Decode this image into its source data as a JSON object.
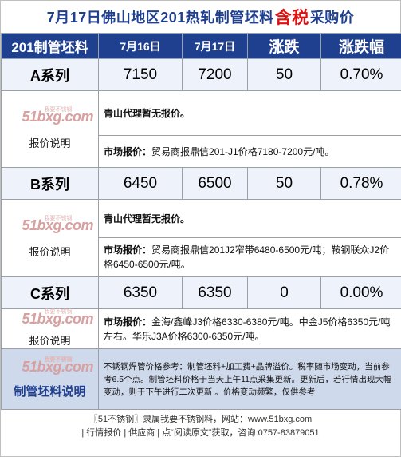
{
  "title": {
    "prefix": "7月17日佛山地区201热轧制管坯料",
    "highlight": "含税",
    "suffix": "采购价"
  },
  "header": {
    "col0": "201制管坯料",
    "col1": "7月16日",
    "col2": "7月17日",
    "col3": "涨跌",
    "col4": "涨跌幅"
  },
  "watermark": {
    "brand": "51bxg.com",
    "small": "我要不锈钢"
  },
  "note_label": "报价说明",
  "rows": [
    {
      "name": "A系列",
      "prev": "7150",
      "curr": "7200",
      "change": "50",
      "pct": "0.70%",
      "note1": "青山代理暂无报价。",
      "note2_label": "市场报价：",
      "note2": "贸易商报鼎信201-J1价格7180-7200元/吨。"
    },
    {
      "name": "B系列",
      "prev": "6450",
      "curr": "6500",
      "change": "50",
      "pct": "0.78%",
      "note1": "青山代理暂无报价。",
      "note2_label": "市场报价：",
      "note2": "贸易商报鼎信201J2窄带6480-6500元/吨；鞍钢联众J2价格6450-6500元/吨。"
    },
    {
      "name": "C系列",
      "prev": "6350",
      "curr": "6350",
      "change": "0",
      "pct": "0.00%",
      "note2_label": "市场报价：",
      "note2": "金海/鑫峰J3价格6330-6380元/吨。中金J5价格6350元/吨左右。华乐J3A价格6300-6350元/吨。"
    }
  ],
  "footer": {
    "label": "制管坯料说明",
    "text": "不锈钢焊管价格参考：制管坯料+加工费+品牌溢价。税率随市场变动，当前参考6.5个点。制管坯料价格于当天上午11点采集更新。更新后，若行情出现大幅变动，则于下午进行二次更新 。价格变动频繁，仅供参考"
  },
  "bottom": {
    "line1": "〖51不锈钢〗隶属我要不锈钢料，网站：www.51bxg.com",
    "line2": "| 行情报价 | 供应商 | 点“阅读原文”获取，咨询:0757-83879051"
  }
}
